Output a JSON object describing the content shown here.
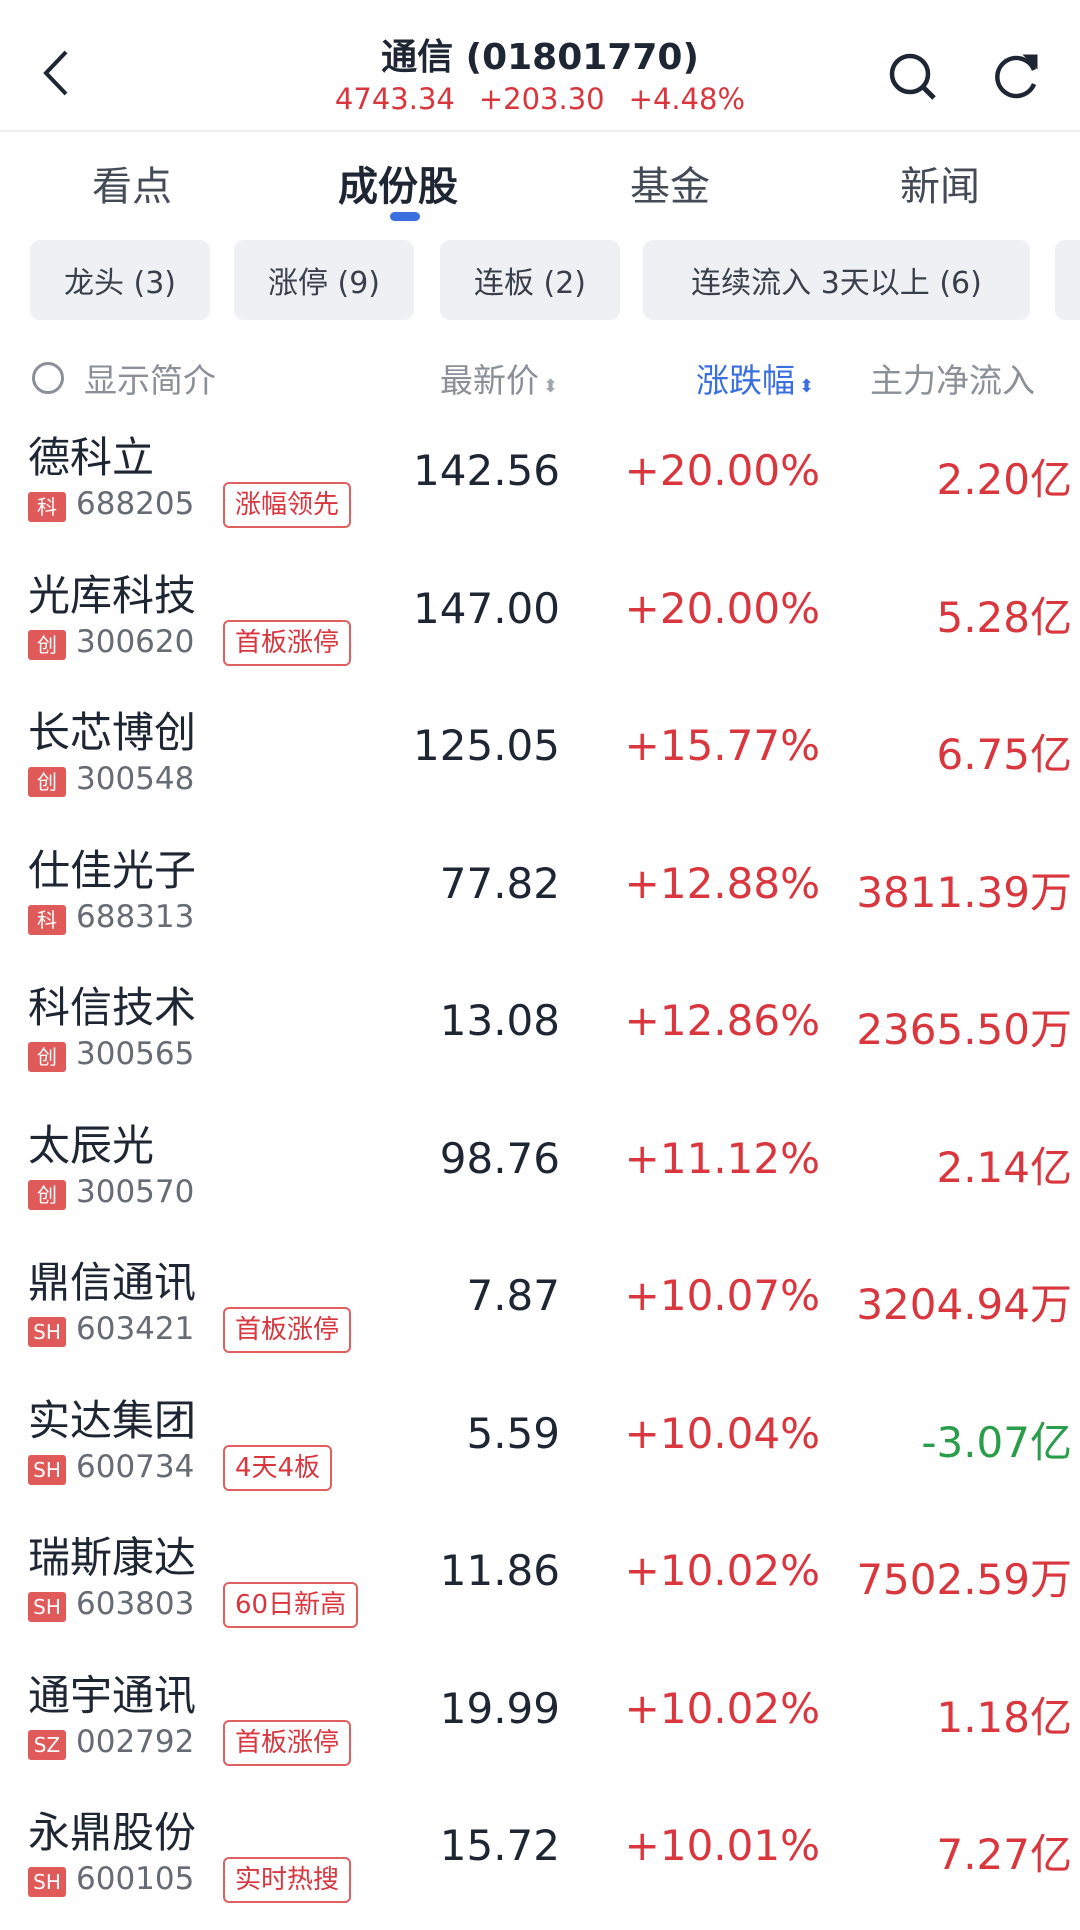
{
  "header": {
    "title": "通信 (01801770)",
    "price": "4743.34",
    "change": "+203.30",
    "change_pct": "+4.48%"
  },
  "tabs": [
    "看点",
    "成份股",
    "基金",
    "新闻"
  ],
  "active_tab": 1,
  "chips": [
    "龙头 (3)",
    "涨停 (9)",
    "连板 (2)",
    "连续流入 3天以上 (6)"
  ],
  "columns": {
    "show_intro": "显示简介",
    "price": "最新价",
    "change": "涨跌幅",
    "net_inflow": "主力净流入"
  },
  "colors": {
    "up": "#d9363e",
    "down": "#2a9d4b",
    "accent": "#3a6fe0"
  },
  "rows": [
    {
      "name": "德科立",
      "market": "科",
      "code": "688205",
      "tag": "涨幅领先",
      "price": "142.56",
      "pct": "+20.00%",
      "flow": "2.20亿",
      "neg": false
    },
    {
      "name": "光库科技",
      "market": "创",
      "code": "300620",
      "tag": "首板涨停",
      "price": "147.00",
      "pct": "+20.00%",
      "flow": "5.28亿",
      "neg": false
    },
    {
      "name": "长芯博创",
      "market": "创",
      "code": "300548",
      "tag": "",
      "price": "125.05",
      "pct": "+15.77%",
      "flow": "6.75亿",
      "neg": false
    },
    {
      "name": "仕佳光子",
      "market": "科",
      "code": "688313",
      "tag": "",
      "price": "77.82",
      "pct": "+12.88%",
      "flow": "3811.39万",
      "neg": false
    },
    {
      "name": "科信技术",
      "market": "创",
      "code": "300565",
      "tag": "",
      "price": "13.08",
      "pct": "+12.86%",
      "flow": "2365.50万",
      "neg": false
    },
    {
      "name": "太辰光",
      "market": "创",
      "code": "300570",
      "tag": "",
      "price": "98.76",
      "pct": "+11.12%",
      "flow": "2.14亿",
      "neg": false
    },
    {
      "name": "鼎信通讯",
      "market": "SH",
      "code": "603421",
      "tag": "首板涨停",
      "price": "7.87",
      "pct": "+10.07%",
      "flow": "3204.94万",
      "neg": false
    },
    {
      "name": "实达集团",
      "market": "SH",
      "code": "600734",
      "tag": "4天4板",
      "price": "5.59",
      "pct": "+10.04%",
      "flow": "-3.07亿",
      "neg": true
    },
    {
      "name": "瑞斯康达",
      "market": "SH",
      "code": "603803",
      "tag": "60日新高",
      "price": "11.86",
      "pct": "+10.02%",
      "flow": "7502.59万",
      "neg": false
    },
    {
      "name": "通宇通讯",
      "market": "SZ",
      "code": "002792",
      "tag": "首板涨停",
      "price": "19.99",
      "pct": "+10.02%",
      "flow": "1.18亿",
      "neg": false
    },
    {
      "name": "永鼎股份",
      "market": "SH",
      "code": "600105",
      "tag": "实时热搜",
      "price": "15.72",
      "pct": "+10.01%",
      "flow": "7.27亿",
      "neg": false
    }
  ]
}
